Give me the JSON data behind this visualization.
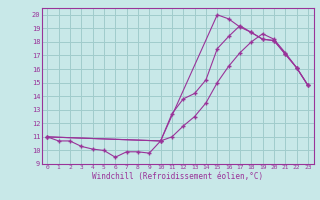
{
  "xlabel": "Windchill (Refroidissement éolien,°C)",
  "bg_color": "#c8e8e8",
  "grid_color": "#a0cccc",
  "line_color": "#993399",
  "xlim": [
    -0.5,
    23.5
  ],
  "ylim": [
    9.0,
    20.5
  ],
  "xticks": [
    0,
    1,
    2,
    3,
    4,
    5,
    6,
    7,
    8,
    9,
    10,
    11,
    12,
    13,
    14,
    15,
    16,
    17,
    18,
    19,
    20,
    21,
    22,
    23
  ],
  "yticks": [
    9,
    10,
    11,
    12,
    13,
    14,
    15,
    16,
    17,
    18,
    19,
    20
  ],
  "line1_x": [
    0,
    1,
    2,
    3,
    4,
    5,
    6,
    7,
    8,
    9,
    10,
    11,
    12,
    13,
    14,
    15,
    16,
    17,
    18,
    19,
    20,
    21,
    22,
    23
  ],
  "line1_y": [
    11.0,
    10.7,
    10.7,
    10.3,
    10.1,
    10.0,
    9.5,
    9.9,
    9.9,
    9.8,
    10.7,
    12.7,
    13.8,
    14.2,
    15.2,
    17.5,
    18.4,
    19.2,
    18.7,
    18.2,
    18.1,
    17.1,
    16.1,
    14.8
  ],
  "line2_x": [
    0,
    10,
    11,
    12,
    13,
    14,
    15,
    16,
    17,
    18,
    19,
    20,
    21,
    22,
    23
  ],
  "line2_y": [
    11.0,
    10.7,
    11.0,
    11.8,
    12.5,
    13.5,
    15.0,
    16.2,
    17.2,
    18.0,
    18.6,
    18.2,
    17.2,
    16.1,
    14.8
  ],
  "line3_x": [
    0,
    10,
    15,
    16,
    17,
    18,
    19,
    20,
    21,
    22,
    23
  ],
  "line3_y": [
    11.0,
    10.7,
    20.0,
    19.7,
    19.1,
    18.7,
    18.2,
    18.1,
    17.1,
    16.1,
    14.8
  ]
}
